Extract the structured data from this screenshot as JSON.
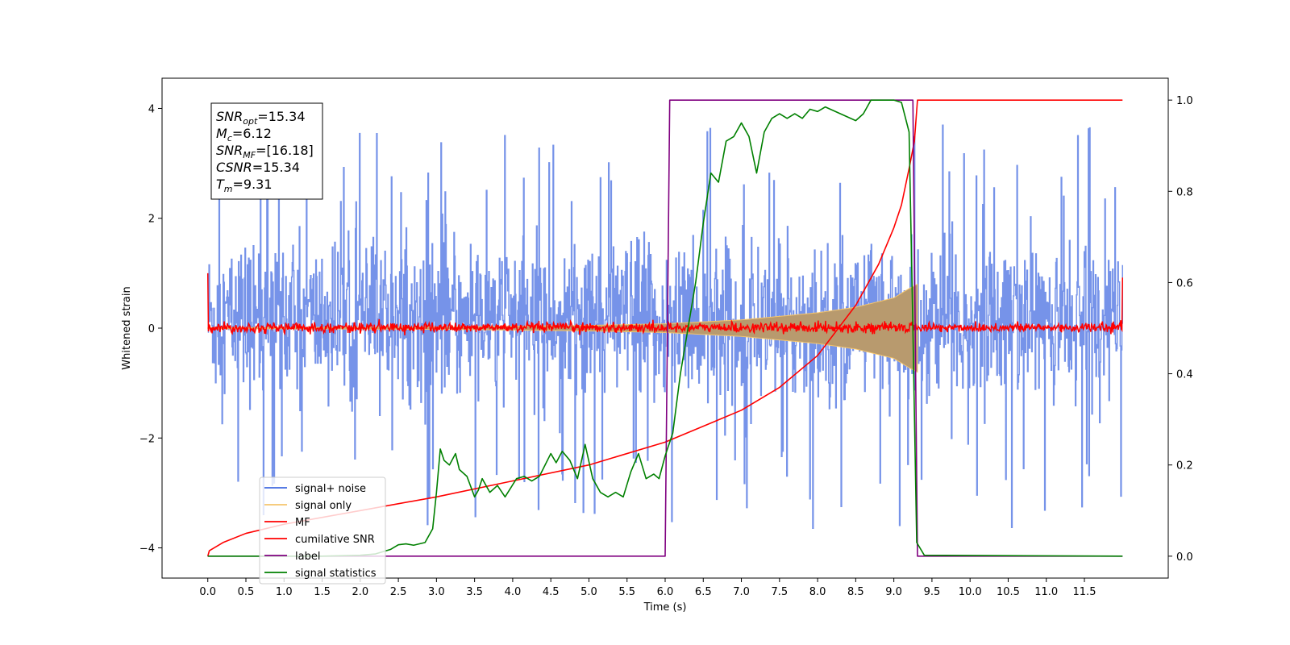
{
  "chart_data": {
    "type": "line",
    "xlabel": "Time (s)",
    "ylabel": "Whitened strain",
    "xlim": [
      -0.6,
      12.6
    ],
    "ylim": [
      -4.55,
      4.55
    ],
    "y2lim": [
      -0.048,
      1.048
    ],
    "x_ticks": [
      "0.0",
      "0.5",
      "1.0",
      "1.5",
      "2.0",
      "2.5",
      "3.0",
      "3.5",
      "4.0",
      "4.5",
      "5.0",
      "5.5",
      "6.0",
      "6.5",
      "7.0",
      "7.5",
      "8.0",
      "8.5",
      "9.0",
      "9.5",
      "10.0",
      "10.5",
      "11.0",
      "11.5"
    ],
    "y_ticks": [
      "4",
      "2",
      "0",
      "−2",
      "−4"
    ],
    "y2_ticks": [
      "1.0",
      "0.8",
      "0.6",
      "0.4",
      "0.2",
      "0.0"
    ],
    "legend_position": "lower left",
    "legend": [
      {
        "label": "signal+ noise",
        "color": "#4169e1"
      },
      {
        "label": "signal only",
        "color": "#f5c56b"
      },
      {
        "label": "MF",
        "color": "#ff0000"
      },
      {
        "label": "cumilative SNR",
        "color": "#ff0000"
      },
      {
        "label": "label",
        "color": "#800080"
      },
      {
        "label": "signal statistics",
        "color": "#008000"
      }
    ],
    "annotation": {
      "lines": [
        {
          "base": "SNR",
          "sub": "opt",
          "value": "=15.34"
        },
        {
          "base": "M",
          "sub": "c",
          "value": "=6.12"
        },
        {
          "base": "SNR",
          "sub": "MF",
          "value": "=[16.18]"
        },
        {
          "base": "CSNR",
          "sub": "",
          "value": "=15.34"
        },
        {
          "base": "T",
          "sub": "m",
          "value": "=9.31"
        }
      ]
    },
    "series": [
      {
        "name": "signal+ noise",
        "color": "#4169e1",
        "description": "noise band",
        "x_range": [
          0.0,
          12.0
        ],
        "typical_range": [
          -1.5,
          1.8
        ],
        "peak_range": [
          -4.15,
          3.85
        ]
      },
      {
        "name": "signal only",
        "color": "#f5c56b",
        "chirp_start": 0.0,
        "chirp_merger": 9.31,
        "envelope": [
          [
            0.0,
            0.01
          ],
          [
            3.0,
            0.02
          ],
          [
            5.0,
            0.05
          ],
          [
            6.0,
            0.08
          ],
          [
            7.0,
            0.15
          ],
          [
            8.0,
            0.28
          ],
          [
            8.5,
            0.38
          ],
          [
            9.0,
            0.55
          ],
          [
            9.2,
            0.72
          ],
          [
            9.31,
            0.8
          ]
        ]
      },
      {
        "name": "MF",
        "color": "#ff0000",
        "x_range": [
          0.0,
          12.0
        ],
        "band": [
          -0.1,
          0.12
        ],
        "edges": [
          [
            0.0,
            1.0
          ],
          [
            12.0,
            0.92
          ]
        ]
      },
      {
        "name": "cumilative SNR",
        "color": "#ff0000",
        "axis": "right",
        "points": [
          [
            0.0,
            0.0
          ],
          [
            0.02,
            0.012
          ],
          [
            0.2,
            0.03
          ],
          [
            0.5,
            0.05
          ],
          [
            1.0,
            0.07
          ],
          [
            2.0,
            0.1
          ],
          [
            3.0,
            0.13
          ],
          [
            4.0,
            0.165
          ],
          [
            5.0,
            0.2
          ],
          [
            6.0,
            0.25
          ],
          [
            7.0,
            0.32
          ],
          [
            7.5,
            0.37
          ],
          [
            8.0,
            0.44
          ],
          [
            8.5,
            0.55
          ],
          [
            8.8,
            0.64
          ],
          [
            9.0,
            0.72
          ],
          [
            9.1,
            0.77
          ],
          [
            9.2,
            0.85
          ],
          [
            9.27,
            0.91
          ],
          [
            9.31,
            1.0
          ],
          [
            12.0,
            1.0
          ]
        ]
      },
      {
        "name": "label",
        "color": "#800080",
        "axis": "right",
        "points": [
          [
            0.0,
            0.0
          ],
          [
            6.0,
            0.0
          ],
          [
            6.06,
            1.0
          ],
          [
            9.25,
            1.0
          ],
          [
            9.31,
            0.0
          ],
          [
            12.0,
            0.0
          ]
        ]
      },
      {
        "name": "signal statistics",
        "color": "#008000",
        "axis": "right",
        "points": [
          [
            0.0,
            0.0
          ],
          [
            0.5,
            0.0
          ],
          [
            1.0,
            0.0
          ],
          [
            1.5,
            0.0
          ],
          [
            2.0,
            0.002
          ],
          [
            2.2,
            0.005
          ],
          [
            2.4,
            0.015
          ],
          [
            2.5,
            0.025
          ],
          [
            2.6,
            0.027
          ],
          [
            2.7,
            0.024
          ],
          [
            2.85,
            0.03
          ],
          [
            2.95,
            0.06
          ],
          [
            3.0,
            0.14
          ],
          [
            3.05,
            0.235
          ],
          [
            3.1,
            0.21
          ],
          [
            3.17,
            0.2
          ],
          [
            3.25,
            0.225
          ],
          [
            3.3,
            0.19
          ],
          [
            3.4,
            0.175
          ],
          [
            3.5,
            0.13
          ],
          [
            3.55,
            0.145
          ],
          [
            3.6,
            0.17
          ],
          [
            3.7,
            0.14
          ],
          [
            3.8,
            0.155
          ],
          [
            3.9,
            0.13
          ],
          [
            4.05,
            0.17
          ],
          [
            4.15,
            0.175
          ],
          [
            4.25,
            0.165
          ],
          [
            4.35,
            0.175
          ],
          [
            4.5,
            0.225
          ],
          [
            4.57,
            0.205
          ],
          [
            4.65,
            0.23
          ],
          [
            4.75,
            0.21
          ],
          [
            4.85,
            0.17
          ],
          [
            4.95,
            0.245
          ],
          [
            5.05,
            0.17
          ],
          [
            5.15,
            0.14
          ],
          [
            5.25,
            0.13
          ],
          [
            5.35,
            0.14
          ],
          [
            5.45,
            0.13
          ],
          [
            5.55,
            0.185
          ],
          [
            5.65,
            0.225
          ],
          [
            5.75,
            0.17
          ],
          [
            5.85,
            0.18
          ],
          [
            5.92,
            0.17
          ],
          [
            6.0,
            0.22
          ],
          [
            6.1,
            0.27
          ],
          [
            6.2,
            0.4
          ],
          [
            6.3,
            0.5
          ],
          [
            6.4,
            0.6
          ],
          [
            6.5,
            0.73
          ],
          [
            6.6,
            0.84
          ],
          [
            6.7,
            0.82
          ],
          [
            6.8,
            0.91
          ],
          [
            6.9,
            0.92
          ],
          [
            7.0,
            0.95
          ],
          [
            7.1,
            0.92
          ],
          [
            7.2,
            0.84
          ],
          [
            7.3,
            0.93
          ],
          [
            7.4,
            0.96
          ],
          [
            7.5,
            0.97
          ],
          [
            7.6,
            0.96
          ],
          [
            7.7,
            0.97
          ],
          [
            7.8,
            0.96
          ],
          [
            7.9,
            0.98
          ],
          [
            8.0,
            0.975
          ],
          [
            8.1,
            0.985
          ],
          [
            8.3,
            0.97
          ],
          [
            8.5,
            0.955
          ],
          [
            8.6,
            0.97
          ],
          [
            8.7,
            1.0
          ],
          [
            8.8,
            1.0
          ],
          [
            9.0,
            1.0
          ],
          [
            9.1,
            0.995
          ],
          [
            9.2,
            0.93
          ],
          [
            9.25,
            0.5
          ],
          [
            9.3,
            0.03
          ],
          [
            9.4,
            0.002
          ],
          [
            12.0,
            0.0
          ]
        ]
      }
    ]
  }
}
